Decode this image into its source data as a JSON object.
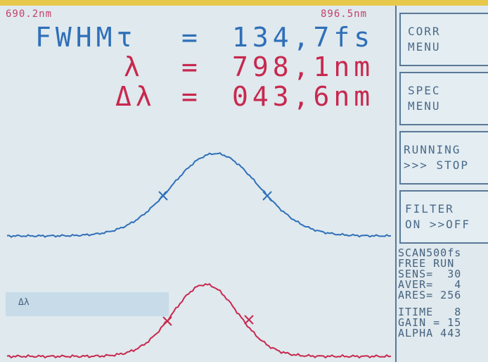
{
  "header": {
    "range_start": "690.2nm",
    "range_end": "896.5nm"
  },
  "readout": {
    "fwhm_label": "FWHMτ",
    "fwhm_eq": "=",
    "fwhm_value": "134,7fs",
    "lambda_label": "λ",
    "lambda_eq": "=",
    "lambda_value": "798,1nm",
    "dlambda_label": "Δλ",
    "dlambda_eq": "=",
    "dlambda_value": "043,6nm"
  },
  "menu": {
    "corr": [
      "CORR",
      "MENU"
    ],
    "spec": [
      "SPEC",
      "MENU"
    ],
    "running": [
      "RUNNING",
      ">>> STOP"
    ],
    "filter": [
      "FILTER",
      "ON >>OFF"
    ]
  },
  "status": [
    "SCAN500fs",
    "FREE RUN",
    "SENS=  30",
    "AVER=   4",
    "ARES= 256",
    "ITIME   8",
    "GAIN = 15",
    "ALPHA 443"
  ],
  "lower_plot": {
    "band_label": "Δλ"
  },
  "colors": {
    "blue_trace": "#2f6fb8",
    "red_trace": "#c8284e",
    "screen_bg": "#dfe9ee"
  }
}
